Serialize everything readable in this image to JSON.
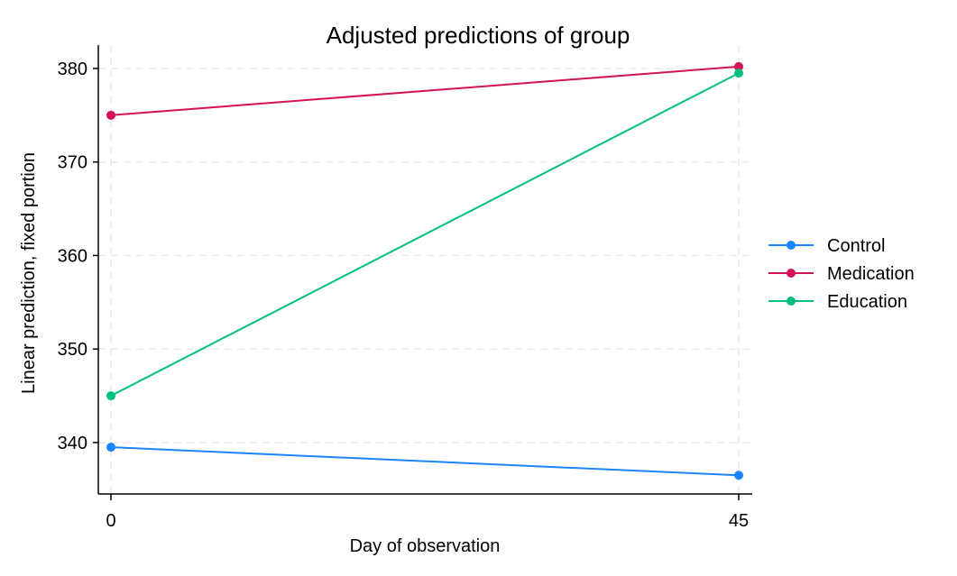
{
  "chart_data": {
    "type": "line",
    "title": "Adjusted predictions of group",
    "xlabel": "Day of observation",
    "ylabel": "Linear prediction, fixed portion",
    "x": [
      0,
      45
    ],
    "x_ticks": [
      "0",
      "45"
    ],
    "y_ticks": [
      340,
      350,
      360,
      370,
      380
    ],
    "ylim": [
      334.5,
      382.5
    ],
    "grid": true,
    "legend_position": "right",
    "series": [
      {
        "name": "Control",
        "color": "#1a85ff",
        "values": [
          339.5,
          336.5
        ]
      },
      {
        "name": "Medication",
        "color": "#d41159",
        "values": [
          375.0,
          380.2
        ]
      },
      {
        "name": "Education",
        "color": "#00bf7f",
        "values": [
          345.0,
          379.5
        ]
      }
    ]
  }
}
